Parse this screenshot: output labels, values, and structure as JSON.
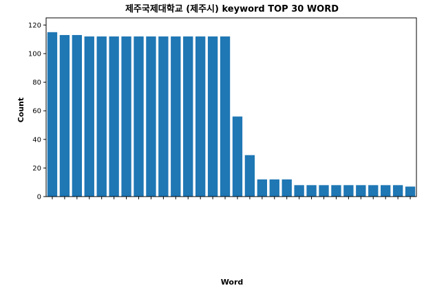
{
  "chart_data": {
    "type": "bar",
    "title": "제주국제대학교 (제주시) keyword TOP 30 WORD",
    "xlabel": "Word",
    "ylabel": "Count",
    "ylim": [
      0,
      125
    ],
    "yticks": [
      0,
      20,
      40,
      60,
      80,
      100,
      120
    ],
    "grid": false,
    "legend": "none",
    "bar_color": "#1f77b4",
    "categories": [
      "",
      "",
      "",
      "",
      "",
      "",
      "",
      "",
      "",
      "",
      "",
      "",
      "",
      "",
      "",
      "",
      "",
      "",
      "",
      "",
      "",
      "",
      "",
      "",
      "",
      "",
      "",
      "",
      "",
      ""
    ],
    "values": [
      115,
      113,
      113,
      112,
      112,
      112,
      112,
      112,
      112,
      112,
      112,
      112,
      112,
      112,
      112,
      56,
      29,
      12,
      12,
      12,
      8,
      8,
      8,
      8,
      8,
      8,
      8,
      8,
      8,
      7
    ]
  }
}
